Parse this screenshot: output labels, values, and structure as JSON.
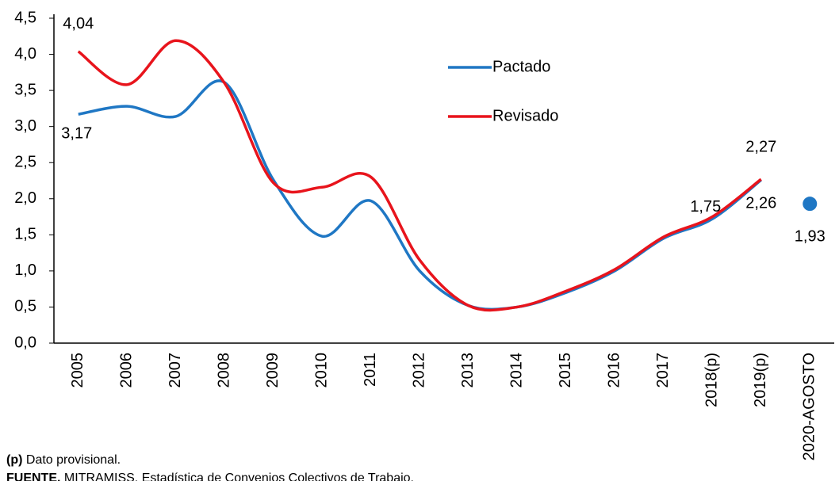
{
  "chart_data": {
    "type": "line",
    "categories": [
      "2005",
      "2006",
      "2007",
      "2008",
      "2009",
      "2010",
      "2011",
      "2012",
      "2013",
      "2014",
      "2015",
      "2016",
      "2017",
      "2018(p)",
      "2019(p)",
      "2020-AGOSTO"
    ],
    "series": [
      {
        "name": "Pactado",
        "color": "#1f77c4",
        "values": [
          3.17,
          3.28,
          3.14,
          3.61,
          2.26,
          1.48,
          1.97,
          1.0,
          0.52,
          0.5,
          0.7,
          1.0,
          1.45,
          1.72,
          2.26,
          null
        ],
        "value_labels": [
          "3,17",
          null,
          null,
          null,
          null,
          null,
          null,
          null,
          null,
          null,
          null,
          null,
          null,
          null,
          "2,26",
          null
        ]
      },
      {
        "name": "Revisado",
        "color": "#e8141c",
        "values": [
          4.04,
          3.58,
          4.19,
          3.6,
          2.22,
          2.16,
          2.3,
          1.15,
          0.52,
          0.5,
          0.72,
          1.02,
          1.47,
          1.75,
          2.27,
          null
        ],
        "value_labels": [
          "4,04",
          null,
          null,
          null,
          null,
          null,
          null,
          null,
          null,
          null,
          null,
          null,
          null,
          "1,75",
          "2,27",
          null
        ]
      },
      {
        "color": "#1f77c4",
        "style": "marker",
        "values": [
          null,
          null,
          null,
          null,
          null,
          null,
          null,
          null,
          null,
          null,
          null,
          null,
          null,
          null,
          null,
          1.93
        ],
        "value_labels": [
          null,
          null,
          null,
          null,
          null,
          null,
          null,
          null,
          null,
          null,
          null,
          null,
          null,
          null,
          null,
          "1,93"
        ]
      }
    ],
    "ylim": [
      0,
      4.5
    ],
    "yticks": [
      {
        "value": 0,
        "label": "0,0"
      },
      {
        "value": 0.5,
        "label": "0,5"
      },
      {
        "value": 1,
        "label": "1,0"
      },
      {
        "value": 1.5,
        "label": "1,5"
      },
      {
        "value": 2,
        "label": "2,0"
      },
      {
        "value": 2.5,
        "label": "2,5"
      },
      {
        "value": 3,
        "label": "3,0"
      },
      {
        "value": 3.5,
        "label": "3,5"
      },
      {
        "value": 4,
        "label": "4,0"
      },
      {
        "value": 4.5,
        "label": "4,5"
      }
    ],
    "grid": false,
    "legend": "top-center"
  },
  "notes": {
    "note_label": "(p)",
    "note": "Dato provisional.",
    "source_label": "FUENTE.",
    "source": "MITRAMISS. Estadística de Convenios Colectivos de Trabajo."
  }
}
